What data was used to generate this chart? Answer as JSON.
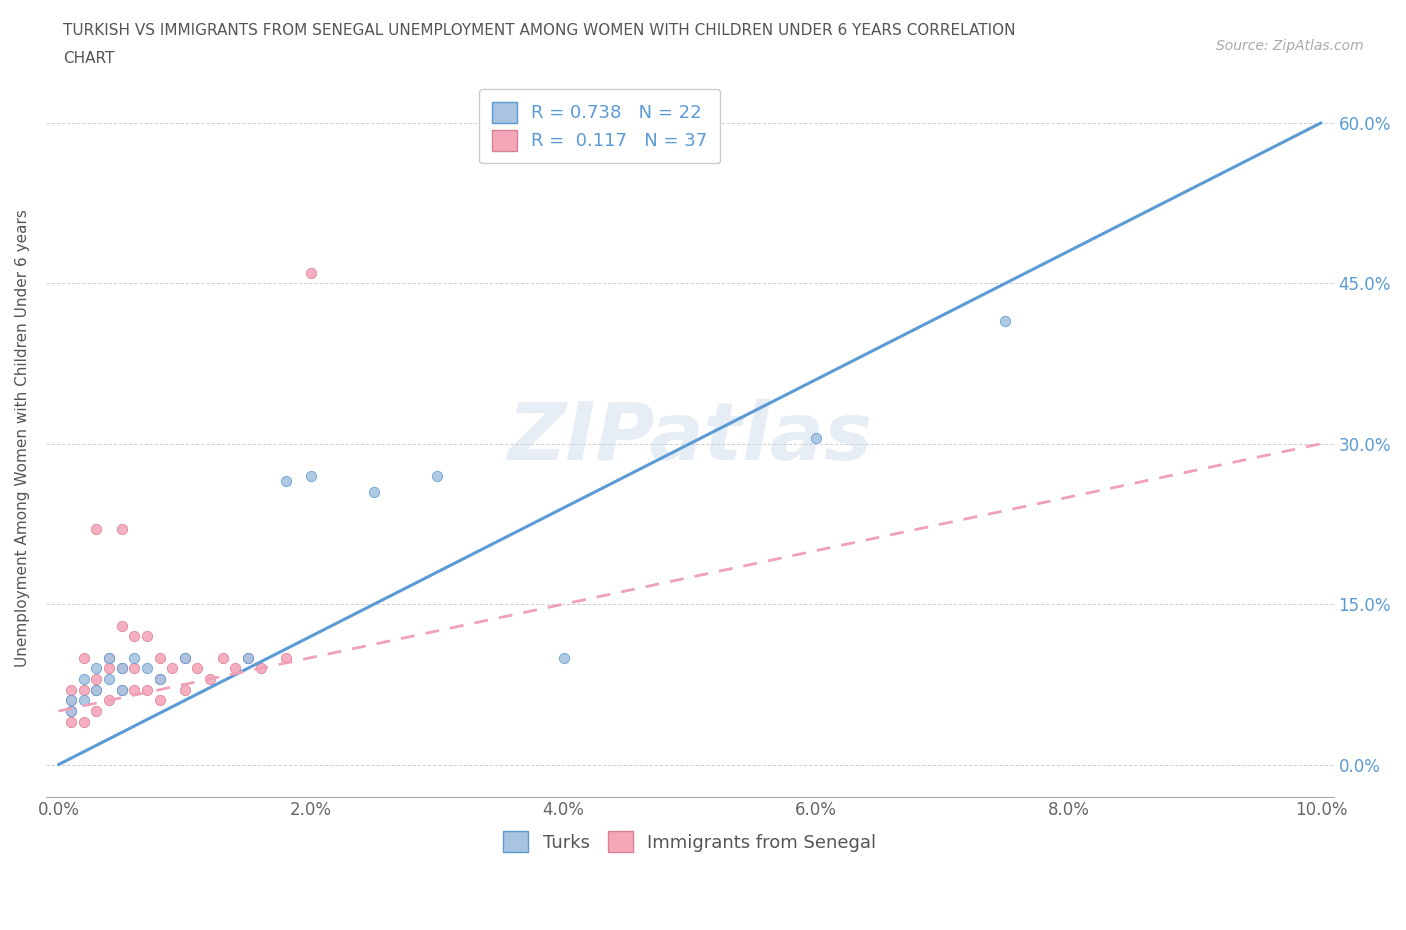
{
  "title_line1": "TURKISH VS IMMIGRANTS FROM SENEGAL UNEMPLOYMENT AMONG WOMEN WITH CHILDREN UNDER 6 YEARS CORRELATION",
  "title_line2": "CHART",
  "source": "Source: ZipAtlas.com",
  "xlabel_ticks": [
    "0.0%",
    "2.0%",
    "4.0%",
    "6.0%",
    "8.0%",
    "10.0%"
  ],
  "ylabel_ticks": [
    "0.0%",
    "15.0%",
    "30.0%",
    "45.0%",
    "60.0%"
  ],
  "xlim": [
    -0.001,
    0.101
  ],
  "ylim": [
    -0.03,
    0.64
  ],
  "ylabel": "Unemployment Among Women with Children Under 6 years",
  "legend_turks": "Turks",
  "legend_senegal": "Immigrants from Senegal",
  "R_turks": 0.738,
  "N_turks": 22,
  "R_senegal": 0.117,
  "N_senegal": 37,
  "turks_color": "#a8c4e0",
  "senegal_color": "#f4a7b9",
  "turks_line_color": "#5b9bd5",
  "senegal_line_color": "#f0a0b8",
  "watermark": "ZIPatlas",
  "turks_x": [
    0.001,
    0.001,
    0.002,
    0.002,
    0.003,
    0.003,
    0.004,
    0.004,
    0.005,
    0.005,
    0.006,
    0.007,
    0.008,
    0.01,
    0.015,
    0.018,
    0.02,
    0.025,
    0.03,
    0.04,
    0.06,
    0.075
  ],
  "turks_y": [
    0.05,
    0.06,
    0.06,
    0.08,
    0.07,
    0.09,
    0.08,
    0.1,
    0.07,
    0.09,
    0.1,
    0.09,
    0.08,
    0.1,
    0.1,
    0.265,
    0.27,
    0.255,
    0.27,
    0.1,
    0.305,
    0.415
  ],
  "senegal_x": [
    0.001,
    0.001,
    0.001,
    0.001,
    0.002,
    0.002,
    0.002,
    0.003,
    0.003,
    0.003,
    0.003,
    0.004,
    0.004,
    0.004,
    0.005,
    0.005,
    0.005,
    0.005,
    0.006,
    0.006,
    0.006,
    0.007,
    0.007,
    0.008,
    0.008,
    0.008,
    0.009,
    0.01,
    0.01,
    0.011,
    0.012,
    0.013,
    0.014,
    0.015,
    0.016,
    0.018,
    0.02
  ],
  "senegal_y": [
    0.04,
    0.05,
    0.06,
    0.07,
    0.04,
    0.07,
    0.1,
    0.05,
    0.07,
    0.08,
    0.22,
    0.06,
    0.09,
    0.1,
    0.07,
    0.09,
    0.13,
    0.22,
    0.07,
    0.09,
    0.12,
    0.07,
    0.12,
    0.06,
    0.08,
    0.1,
    0.09,
    0.07,
    0.1,
    0.09,
    0.08,
    0.1,
    0.09,
    0.1,
    0.09,
    0.1,
    0.46
  ],
  "turks_trendline_x": [
    0.0,
    0.1
  ],
  "turks_trendline_y": [
    0.0,
    0.6
  ],
  "senegal_trendline_x": [
    0.0,
    0.1
  ],
  "senegal_trendline_y": [
    0.05,
    0.3
  ]
}
